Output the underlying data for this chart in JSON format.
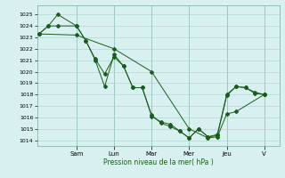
{
  "xlabel": "Pression niveau de la mer( hPa )",
  "bg_color": "#d8f0f0",
  "grid_color": "#a8cece",
  "line_color": "#1a5c1a",
  "ylim": [
    1013.5,
    1025.8
  ],
  "yticks": [
    1014,
    1015,
    1016,
    1017,
    1018,
    1019,
    1020,
    1021,
    1022,
    1023,
    1024,
    1025
  ],
  "day_labels": [
    "Sam",
    "Lun",
    "Mar",
    "Mer",
    "Jeu",
    "V"
  ],
  "day_positions": [
    2,
    4,
    6,
    8,
    10,
    12
  ],
  "xlim": [
    -0.1,
    12.8
  ],
  "series": [
    {
      "x": [
        0,
        0.5,
        1,
        2,
        2.5,
        3,
        3.5,
        4,
        4.5,
        5,
        5.5,
        6,
        6.5,
        7,
        7.5,
        8,
        8.5,
        9,
        9.5,
        10,
        10.5,
        11,
        11.5,
        12
      ],
      "y": [
        1023.3,
        1024.0,
        1025.0,
        1024.0,
        1022.7,
        1021.0,
        1018.7,
        1021.5,
        1020.5,
        1018.6,
        1018.6,
        1016.2,
        1015.5,
        1015.2,
        1014.8,
        1014.2,
        1015.0,
        1014.3,
        1014.5,
        1018.0,
        1018.7,
        1018.6,
        1018.2,
        1018.0
      ]
    },
    {
      "x": [
        0,
        0.5,
        1,
        2,
        2.5,
        3,
        3.5,
        4,
        4.5,
        5,
        5.5,
        6,
        6.5,
        7,
        7.5,
        8,
        8.5,
        9,
        9.5,
        10,
        10.5,
        11,
        11.5,
        12
      ],
      "y": [
        1023.3,
        1024.0,
        1024.0,
        1024.0,
        1022.7,
        1021.1,
        1019.8,
        1021.3,
        1020.5,
        1018.6,
        1018.6,
        1016.1,
        1015.6,
        1015.4,
        1014.8,
        1014.2,
        1015.0,
        1014.3,
        1014.4,
        1017.9,
        1018.7,
        1018.6,
        1018.1,
        1018.0
      ]
    },
    {
      "x": [
        0,
        2,
        4,
        6,
        8,
        9,
        9.5,
        10,
        10.5,
        12
      ],
      "y": [
        1023.3,
        1023.2,
        1022.0,
        1020.0,
        1015.0,
        1014.2,
        1014.3,
        1016.3,
        1016.5,
        1018.0
      ]
    }
  ]
}
